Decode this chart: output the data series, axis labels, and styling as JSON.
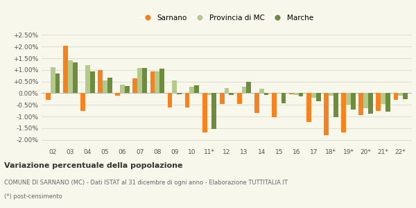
{
  "categories": [
    "02",
    "03",
    "04",
    "05",
    "06",
    "07",
    "08",
    "09",
    "10",
    "11*",
    "12",
    "13",
    "14",
    "15",
    "16",
    "17",
    "18*",
    "19*",
    "20*",
    "21*",
    "22*"
  ],
  "sarnano": [
    -0.3,
    2.05,
    -0.75,
    1.0,
    -0.1,
    0.65,
    0.92,
    -0.6,
    -0.62,
    -1.68,
    -0.45,
    -0.45,
    -0.85,
    -1.02,
    -0.05,
    -1.25,
    -1.8,
    -1.68,
    -0.95,
    -0.75,
    -0.3
  ],
  "provincia": [
    1.1,
    1.4,
    1.2,
    0.55,
    0.38,
    1.07,
    0.92,
    0.55,
    0.28,
    -0.08,
    0.22,
    0.28,
    0.2,
    -0.03,
    -0.08,
    -0.2,
    -0.12,
    -0.5,
    -0.65,
    -0.45,
    -0.1
  ],
  "marche": [
    0.85,
    1.32,
    0.92,
    0.68,
    0.32,
    1.07,
    1.05,
    -0.05,
    0.35,
    -1.55,
    -0.08,
    0.5,
    -0.07,
    -0.42,
    -0.15,
    -0.35,
    -1.02,
    -0.7,
    -0.88,
    -0.8,
    -0.25
  ],
  "color_sarnano": "#f5811f",
  "color_provincia": "#b5c98a",
  "color_marche": "#6d8c3e",
  "title": "Variazione percentuale della popolazione",
  "subtitle": "COMUNE DI SARNANO (MC) - Dati ISTAT al 31 dicembre di ogni anno - Elaborazione TUTTITALIA.IT",
  "footnote": "(*) post-censimento",
  "legend_labels": [
    "Sarnano",
    "Provincia di MC",
    "Marche"
  ],
  "ylim": [
    -2.25,
    2.75
  ],
  "yticks": [
    -2.0,
    -1.5,
    -1.0,
    -0.5,
    0.0,
    0.5,
    1.0,
    1.5,
    2.0,
    2.5
  ],
  "ytick_labels": [
    "-2.00%",
    "-1.50%",
    "-1.00%",
    "-0.50%",
    "0.00%",
    "+0.50%",
    "+1.00%",
    "+1.50%",
    "+2.00%",
    "+2.50%"
  ],
  "bg_color": "#f7f7ec",
  "grid_color": "#e0e0d0",
  "bar_width": 0.27,
  "figsize": [
    6.0,
    3.0
  ],
  "dpi": 100
}
